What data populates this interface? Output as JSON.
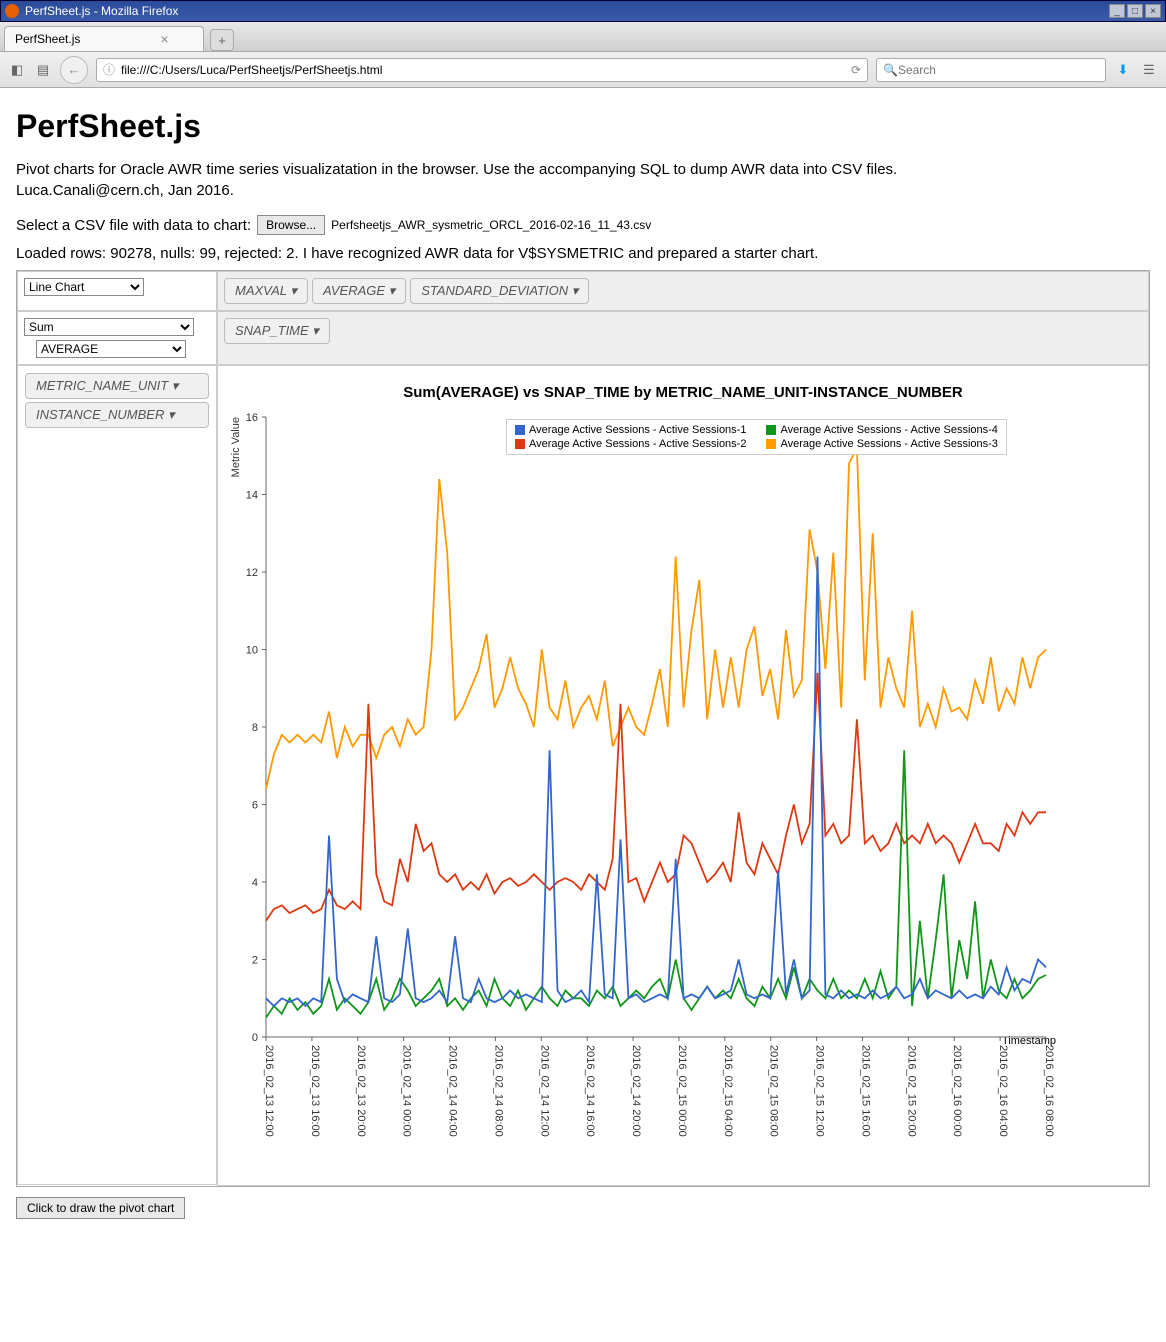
{
  "window": {
    "title": "PerfSheet.js - Mozilla Firefox"
  },
  "tab": {
    "label": "PerfSheet.js"
  },
  "urlbar": {
    "url": "file:///C:/Users/Luca/PerfSheetjs/PerfSheetjs.html"
  },
  "searchbar": {
    "placeholder": "Search"
  },
  "page": {
    "heading": "PerfSheet.js",
    "intro_line1": "Pivot charts for Oracle AWR time series visualizatation in the browser. Use the accompanying SQL to dump AWR data into CSV files.",
    "intro_line2": "Luca.Canali@cern.ch, Jan 2016.",
    "file_prompt": "Select a CSV file with data to chart:",
    "browse_label": "Browse...",
    "filename": "Perfsheetjs_AWR_sysmetric_ORCL_2016-02-16_11_43.csv",
    "status": "Loaded rows: 90278, nulls: 99, rejected: 2. I have recognized AWR data for V$SYSMETRIC and prepared a starter chart.",
    "draw_button": "Click to draw the pivot chart"
  },
  "pivot": {
    "renderer_options": [
      "Line Chart"
    ],
    "renderer_selected": "Line Chart",
    "aggregator_options": [
      "Sum"
    ],
    "aggregator_selected": "Sum",
    "aggregator_attr_options": [
      "AVERAGE"
    ],
    "aggregator_attr_selected": "AVERAGE",
    "unused_attrs": [
      "MAXVAL",
      "AVERAGE",
      "STANDARD_DEVIATION"
    ],
    "col_attrs": [
      "SNAP_TIME"
    ],
    "row_attrs": [
      "METRIC_NAME_UNIT",
      "INSTANCE_NUMBER"
    ]
  },
  "chart": {
    "title": "Sum(AVERAGE) vs SNAP_TIME by METRIC_NAME_UNIT-INSTANCE_NUMBER",
    "ylabel": "Metric Value",
    "xlabel": "Timestamp",
    "ylim": [
      0,
      16
    ],
    "yticks": [
      0,
      2,
      4,
      6,
      8,
      10,
      12,
      14,
      16
    ],
    "xticks": [
      "2016_02_13 12:00",
      "2016_02_13 16:00",
      "2016_02_13 20:00",
      "2016_02_14 00:00",
      "2016_02_14 04:00",
      "2016_02_14 08:00",
      "2016_02_14 12:00",
      "2016_02_14 16:00",
      "2016_02_14 20:00",
      "2016_02_15 00:00",
      "2016_02_15 04:00",
      "2016_02_15 08:00",
      "2016_02_15 12:00",
      "2016_02_15 16:00",
      "2016_02_15 20:00",
      "2016_02_16 00:00",
      "2016_02_16 04:00",
      "2016_02_16 08:00"
    ],
    "colors": {
      "s1": "#3366cc",
      "s2": "#dc3912",
      "s3": "#ff9900",
      "s4": "#109618",
      "grid": "#cccccc",
      "axis": "#666666",
      "bg": "#ffffff"
    },
    "legend": {
      "s1": "Average Active Sessions - Active Sessions-1",
      "s2": "Average Active Sessions - Active Sessions-2",
      "s3": "Average Active Sessions - Active Sessions-3",
      "s4": "Average Active Sessions - Active Sessions-4"
    },
    "series": {
      "s1": [
        1.0,
        0.8,
        1.0,
        0.9,
        1.0,
        0.8,
        1.0,
        0.9,
        5.2,
        1.5,
        0.9,
        1.1,
        1.0,
        0.9,
        2.6,
        1.0,
        0.9,
        1.1,
        2.8,
        1.0,
        0.9,
        1.0,
        1.2,
        0.9,
        2.6,
        1.0,
        0.9,
        1.5,
        1.0,
        0.9,
        1.0,
        1.2,
        1.0,
        1.1,
        1.0,
        0.9,
        7.4,
        1.2,
        0.9,
        1.0,
        1.2,
        0.9,
        4.2,
        1.1,
        1.0,
        5.1,
        1.0,
        1.1,
        0.9,
        1.0,
        1.1,
        1.0,
        4.6,
        1.0,
        1.1,
        1.0,
        1.3,
        1.0,
        1.1,
        1.2,
        2.0,
        1.1,
        1.0,
        1.1,
        1.0,
        4.3,
        1.1,
        2.0,
        1.0,
        1.2,
        12.4,
        1.1,
        1.0,
        1.2,
        1.0,
        1.1,
        1.0,
        1.2,
        1.0,
        1.1,
        1.3,
        1.0,
        1.1,
        1.5,
        1.0,
        1.2,
        1.1,
        1.0,
        1.2,
        1.0,
        1.1,
        1.0,
        1.3,
        1.1,
        1.8,
        1.2,
        1.5,
        1.4,
        2.0,
        1.8
      ],
      "s2": [
        3.0,
        3.3,
        3.4,
        3.2,
        3.3,
        3.4,
        3.2,
        3.3,
        3.8,
        3.4,
        3.3,
        3.5,
        3.3,
        8.6,
        4.2,
        3.5,
        3.4,
        4.6,
        4.0,
        5.5,
        4.8,
        5.0,
        4.2,
        4.0,
        4.2,
        3.8,
        4.0,
        3.8,
        4.2,
        3.7,
        4.0,
        4.1,
        3.9,
        4.0,
        4.2,
        4.0,
        3.8,
        4.0,
        4.1,
        4.0,
        3.8,
        4.2,
        4.0,
        3.8,
        4.6,
        8.6,
        4.0,
        4.1,
        3.5,
        4.0,
        4.5,
        4.0,
        4.2,
        5.2,
        5.0,
        4.5,
        4.0,
        4.2,
        4.5,
        4.0,
        5.8,
        4.5,
        4.2,
        5.0,
        4.6,
        4.2,
        5.2,
        6.0,
        5.0,
        5.5,
        9.4,
        5.2,
        5.5,
        5.0,
        5.2,
        8.2,
        5.0,
        5.2,
        4.8,
        5.0,
        5.5,
        5.0,
        5.2,
        5.0,
        5.5,
        5.0,
        5.2,
        5.0,
        4.5,
        5.0,
        5.5,
        5.0,
        5.0,
        4.8,
        5.5,
        5.2,
        5.8,
        5.5,
        5.8,
        5.8
      ],
      "s3": [
        6.4,
        7.3,
        7.8,
        7.6,
        7.8,
        7.6,
        7.8,
        7.6,
        8.4,
        7.2,
        8.0,
        7.5,
        7.8,
        7.8,
        7.2,
        7.8,
        8.0,
        7.5,
        8.2,
        7.8,
        8.0,
        10.0,
        14.4,
        12.5,
        8.2,
        8.5,
        9.0,
        9.5,
        10.4,
        8.5,
        9.0,
        9.8,
        9.0,
        8.6,
        8.0,
        10.0,
        8.5,
        8.2,
        9.2,
        8.0,
        8.5,
        8.8,
        8.2,
        9.2,
        7.5,
        8.0,
        8.5,
        8.0,
        7.8,
        8.6,
        9.5,
        8.0,
        12.4,
        8.5,
        10.5,
        11.8,
        8.2,
        10.0,
        8.5,
        9.8,
        8.5,
        10.0,
        10.6,
        8.8,
        9.5,
        8.2,
        10.5,
        8.8,
        9.2,
        13.1,
        12.0,
        9.5,
        12.5,
        8.5,
        14.8,
        15.2,
        9.2,
        13.0,
        8.5,
        9.8,
        9.0,
        8.5,
        11.0,
        8.0,
        8.6,
        8.0,
        9.0,
        8.4,
        8.5,
        8.2,
        9.2,
        8.6,
        9.8,
        8.4,
        9.0,
        8.6,
        9.8,
        9.0,
        9.8,
        10.0
      ],
      "s4": [
        0.5,
        0.8,
        0.6,
        1.0,
        0.7,
        0.9,
        0.6,
        0.8,
        1.5,
        0.7,
        1.0,
        0.8,
        0.6,
        0.9,
        1.5,
        0.7,
        1.0,
        1.5,
        1.2,
        0.8,
        1.0,
        1.2,
        1.5,
        0.8,
        1.0,
        0.7,
        1.0,
        1.2,
        0.8,
        1.5,
        1.0,
        0.8,
        1.2,
        0.7,
        1.0,
        1.3,
        1.0,
        0.8,
        1.2,
        1.0,
        1.0,
        0.8,
        1.2,
        1.0,
        1.3,
        0.8,
        1.0,
        1.2,
        1.0,
        1.3,
        1.5,
        1.0,
        2.0,
        1.0,
        0.7,
        1.0,
        1.3,
        1.0,
        1.2,
        1.0,
        1.5,
        1.0,
        0.8,
        1.3,
        1.0,
        1.5,
        1.0,
        1.8,
        1.0,
        1.5,
        1.2,
        1.0,
        1.5,
        1.0,
        1.2,
        1.0,
        1.5,
        1.0,
        1.7,
        1.0,
        1.3,
        7.4,
        0.8,
        3.0,
        1.0,
        2.5,
        4.2,
        1.0,
        2.5,
        1.5,
        3.5,
        1.0,
        2.0,
        1.2,
        1.0,
        1.5,
        1.0,
        1.2,
        1.5,
        1.6
      ]
    }
  }
}
